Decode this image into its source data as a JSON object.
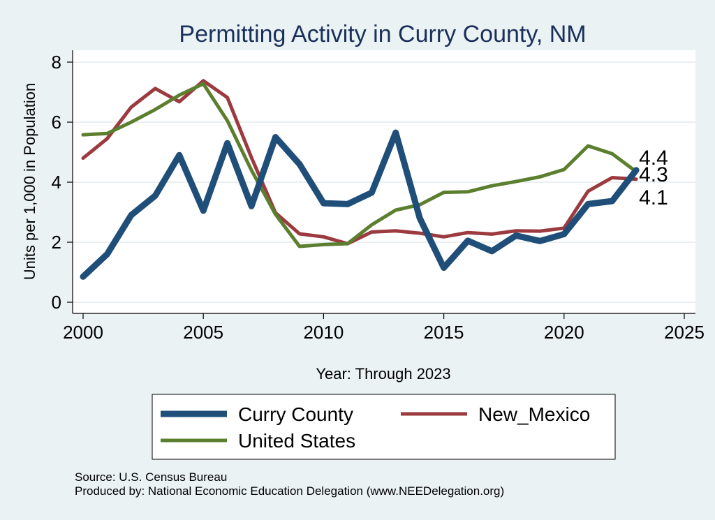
{
  "chart_data": {
    "type": "line",
    "title": "Permitting Activity in Curry County, NM",
    "xlabel": "Year: Through 2023",
    "ylabel": "Units per 1,000 in Population",
    "xlim": [
      2000,
      2025
    ],
    "ylim": [
      0,
      8
    ],
    "x_ticks": [
      "2000",
      "2005",
      "2010",
      "2015",
      "2020",
      "2025"
    ],
    "y_ticks": [
      "0",
      "2",
      "4",
      "6",
      "8"
    ],
    "grid": true,
    "legend_position": "bottom",
    "x": [
      2000,
      2001,
      2002,
      2003,
      2004,
      2005,
      2006,
      2007,
      2008,
      2009,
      2010,
      2011,
      2012,
      2013,
      2014,
      2015,
      2016,
      2017,
      2018,
      2019,
      2020,
      2021,
      2022,
      2023
    ],
    "series": [
      {
        "name": "Curry County",
        "color": "#1f4e79",
        "values": [
          0.85,
          1.6,
          2.9,
          3.55,
          4.9,
          3.05,
          5.3,
          3.2,
          5.5,
          4.6,
          3.3,
          3.27,
          3.65,
          5.65,
          2.8,
          1.15,
          2.05,
          1.7,
          2.22,
          2.04,
          2.27,
          3.27,
          3.37,
          4.4
        ]
      },
      {
        "name": "New_Mexico",
        "color": "#9b3a3f",
        "values": [
          4.8,
          5.45,
          6.5,
          7.12,
          6.68,
          7.38,
          6.82,
          4.82,
          2.98,
          2.28,
          2.18,
          1.95,
          2.34,
          2.38,
          2.3,
          2.18,
          2.32,
          2.27,
          2.38,
          2.37,
          2.47,
          3.7,
          4.15,
          4.1
        ]
      },
      {
        "name": "United States",
        "color": "#5b7f2e",
        "values": [
          5.58,
          5.62,
          6.0,
          6.42,
          6.9,
          7.28,
          6.05,
          4.4,
          2.93,
          1.86,
          1.92,
          1.95,
          2.58,
          3.07,
          3.25,
          3.66,
          3.68,
          3.88,
          4.02,
          4.18,
          4.42,
          5.21,
          4.95,
          4.35
        ]
      }
    ],
    "end_labels": [
      "4.4",
      "4.3",
      "4.1"
    ]
  },
  "notes": {
    "source": "Source: U.S. Census Bureau",
    "producer": "Produced by: National Economic Education Delegation (www.NEEDelegation.org)"
  }
}
